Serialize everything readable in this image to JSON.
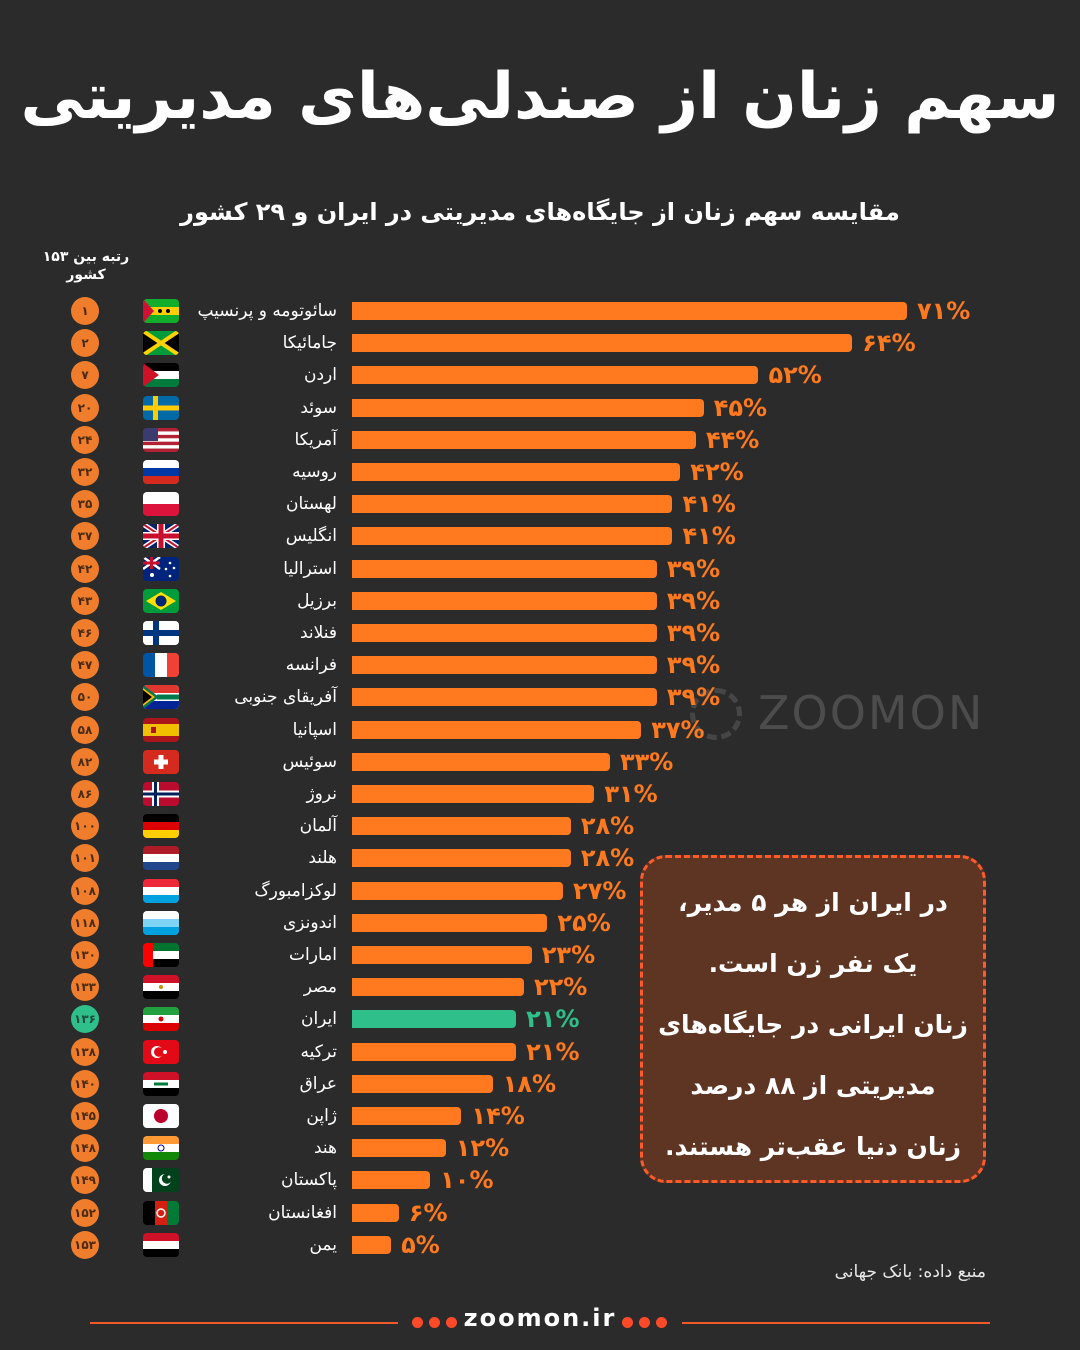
{
  "title": "سهم زنان از صندلی‌های مدیریتی",
  "subtitle": "مقایسه سهم زنان از جایگاه‌های مدیریتی در ایران و ۲۹ کشور",
  "rank_header_line1": "رتبه بین ۱۵۳",
  "rank_header_line2": "کشور",
  "watermark": "ZOOMON",
  "callout": {
    "lines": [
      "در ایران از هر ۵ مدیر،",
      "یک نفر زن است.",
      "زنان ایرانی در جایگاه‌های",
      "مدیریتی از ۸۸ درصد",
      "زنان دنیا عقب‌تر هستند."
    ]
  },
  "source": "منبع داده: بانک جهانی",
  "footer": "zoomon.ir",
  "colors": {
    "background": "#2b2b2b",
    "bar": "#ff7a1f",
    "highlight": "#2fbf8b",
    "callout_bg": "#5e3523",
    "callout_border": "#ff5a2a"
  },
  "chart_data": {
    "type": "bar",
    "orientation": "horizontal",
    "title": "سهم زنان از صندلی‌های مدیریتی",
    "subtitle": "مقایسه سهم زنان از جایگاه‌های مدیریتی در ایران و ۲۹ کشور",
    "xlim": [
      0,
      71
    ],
    "grid": false,
    "highlight": "ایران",
    "rows": [
      {
        "rank": 1,
        "rank_label": "۱",
        "country": "سائوتومه و پرنسیپ",
        "value": 71,
        "label": "۷۱%",
        "flag": "sao-tome"
      },
      {
        "rank": 2,
        "rank_label": "۲",
        "country": "جامائیکا",
        "value": 64,
        "label": "۶۴%",
        "flag": "jamaica"
      },
      {
        "rank": 7,
        "rank_label": "۷",
        "country": "اردن",
        "value": 52,
        "label": "۵۲%",
        "flag": "jordan"
      },
      {
        "rank": 20,
        "rank_label": "۲۰",
        "country": "سوئد",
        "value": 45,
        "label": "۴۵%",
        "flag": "sweden"
      },
      {
        "rank": 24,
        "rank_label": "۲۴",
        "country": "آمریکا",
        "value": 44,
        "label": "۴۴%",
        "flag": "usa"
      },
      {
        "rank": 32,
        "rank_label": "۳۲",
        "country": "روسیه",
        "value": 42,
        "label": "۴۲%",
        "flag": "russia"
      },
      {
        "rank": 35,
        "rank_label": "۳۵",
        "country": "لهستان",
        "value": 41,
        "label": "۴۱%",
        "flag": "poland"
      },
      {
        "rank": 37,
        "rank_label": "۳۷",
        "country": "انگلیس",
        "value": 41,
        "label": "۴۱%",
        "flag": "uk"
      },
      {
        "rank": 42,
        "rank_label": "۴۲",
        "country": "استرالیا",
        "value": 39,
        "label": "۳۹%",
        "flag": "australia"
      },
      {
        "rank": 43,
        "rank_label": "۴۳",
        "country": "برزیل",
        "value": 39,
        "label": "۳۹%",
        "flag": "brazil"
      },
      {
        "rank": 46,
        "rank_label": "۴۶",
        "country": "فنلاند",
        "value": 39,
        "label": "۳۹%",
        "flag": "finland"
      },
      {
        "rank": 47,
        "rank_label": "۴۷",
        "country": "فرانسه",
        "value": 39,
        "label": "۳۹%",
        "flag": "france"
      },
      {
        "rank": 50,
        "rank_label": "۵۰",
        "country": "آفریقای جنوبی",
        "value": 39,
        "label": "۳۹%",
        "flag": "south-africa"
      },
      {
        "rank": 58,
        "rank_label": "۵۸",
        "country": "اسپانیا",
        "value": 37,
        "label": "۳۷%",
        "flag": "spain"
      },
      {
        "rank": 82,
        "rank_label": "۸۲",
        "country": "سوئیس",
        "value": 33,
        "label": "۳۳%",
        "flag": "switzerland"
      },
      {
        "rank": 86,
        "rank_label": "۸۶",
        "country": "نروژ",
        "value": 31,
        "label": "۳۱%",
        "flag": "norway"
      },
      {
        "rank": 100,
        "rank_label": "۱۰۰",
        "country": "آلمان",
        "value": 28,
        "label": "۲۸%",
        "flag": "germany"
      },
      {
        "rank": 101,
        "rank_label": "۱۰۱",
        "country": "هلند",
        "value": 28,
        "label": "۲۸%",
        "flag": "netherlands"
      },
      {
        "rank": 108,
        "rank_label": "۱۰۸",
        "country": "لوکزامبورگ",
        "value": 27,
        "label": "۲۷%",
        "flag": "luxembourg"
      },
      {
        "rank": 118,
        "rank_label": "۱۱۸",
        "country": "اندونزی",
        "value": 25,
        "label": "۲۵%",
        "flag": "luxembourg-light"
      },
      {
        "rank": 130,
        "rank_label": "۱۳۰",
        "country": "امارات",
        "value": 23,
        "label": "۲۳%",
        "flag": "uae"
      },
      {
        "rank": 133,
        "rank_label": "۱۳۳",
        "country": "مصر",
        "value": 22,
        "label": "۲۲%",
        "flag": "egypt"
      },
      {
        "rank": 136,
        "rank_label": "۱۳۶",
        "country": "ایران",
        "value": 21,
        "label": "۲۱%",
        "flag": "iran"
      },
      {
        "rank": 138,
        "rank_label": "۱۳۸",
        "country": "ترکیه",
        "value": 21,
        "label": "۲۱%",
        "flag": "turkey"
      },
      {
        "rank": 140,
        "rank_label": "۱۴۰",
        "country": "عراق",
        "value": 18,
        "label": "۱۸%",
        "flag": "iraq"
      },
      {
        "rank": 145,
        "rank_label": "۱۴۵",
        "country": "ژاپن",
        "value": 14,
        "label": "۱۴%",
        "flag": "japan"
      },
      {
        "rank": 148,
        "rank_label": "۱۴۸",
        "country": "هند",
        "value": 12,
        "label": "۱۲%",
        "flag": "india"
      },
      {
        "rank": 149,
        "rank_label": "۱۴۹",
        "country": "پاکستان",
        "value": 10,
        "label": "۱۰%",
        "flag": "pakistan"
      },
      {
        "rank": 152,
        "rank_label": "۱۵۲",
        "country": "افغانستان",
        "value": 6,
        "label": "۶%",
        "flag": "afghanistan"
      },
      {
        "rank": 153,
        "rank_label": "۱۵۳",
        "country": "یمن",
        "value": 5,
        "label": "۵%",
        "flag": "yemen"
      }
    ]
  }
}
